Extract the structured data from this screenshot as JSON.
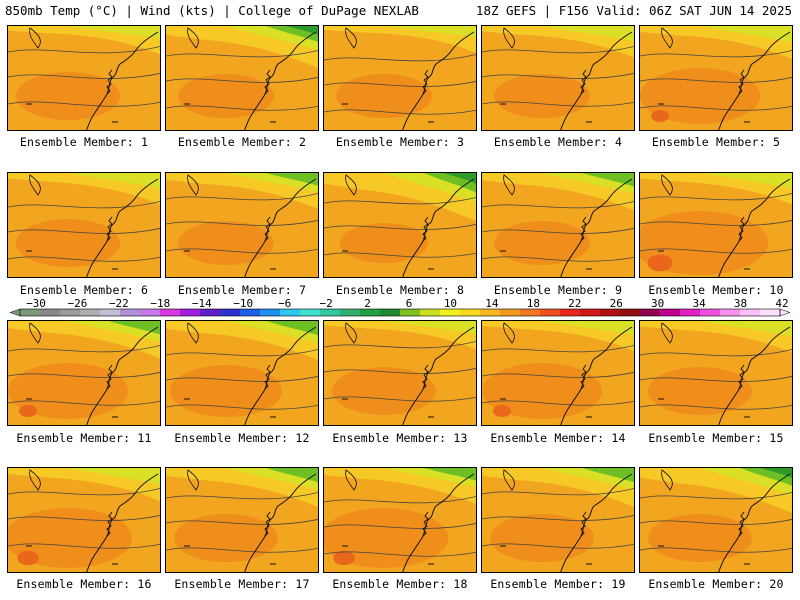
{
  "header": {
    "left": "850mb Temp (°C) | Wind (kts) | College of DuPage NEXLAB",
    "right": "18Z GEFS | F156 Valid: 06Z SAT JUN 14 2025"
  },
  "panels": [
    {
      "label": "Ensemble Member: 1",
      "cool_top": 0.15,
      "warm_blob": 0.3
    },
    {
      "label": "Ensemble Member: 2",
      "cool_top": 0.6,
      "warm_blob": 0.2
    },
    {
      "label": "Ensemble Member: 3",
      "cool_top": 0.1,
      "warm_blob": 0.2
    },
    {
      "label": "Ensemble Member: 4",
      "cool_top": 0.25,
      "warm_blob": 0.2
    },
    {
      "label": "Ensemble Member: 5",
      "cool_top": 0.3,
      "warm_blob": 0.5
    },
    {
      "label": "Ensemble Member: 6",
      "cool_top": 0.25,
      "warm_blob": 0.3
    },
    {
      "label": "Ensemble Member: 7",
      "cool_top": 0.4,
      "warm_blob": 0.2
    },
    {
      "label": "Ensemble Member: 8",
      "cool_top": 0.8,
      "warm_blob": 0.1
    },
    {
      "label": "Ensemble Member: 9",
      "cool_top": 0.45,
      "warm_blob": 0.2
    },
    {
      "label": "Ensemble Member: 10",
      "cool_top": 0.25,
      "warm_blob": 0.7
    },
    {
      "label": "Ensemble Member: 11",
      "cool_top": 0.45,
      "warm_blob": 0.5
    },
    {
      "label": "Ensemble Member: 12",
      "cool_top": 0.5,
      "warm_blob": 0.4
    },
    {
      "label": "Ensemble Member: 13",
      "cool_top": 0.15,
      "warm_blob": 0.3
    },
    {
      "label": "Ensemble Member: 14",
      "cool_top": 0.2,
      "warm_blob": 0.5
    },
    {
      "label": "Ensemble Member: 15",
      "cool_top": 0.25,
      "warm_blob": 0.3
    },
    {
      "label": "Ensemble Member: 16",
      "cool_top": 0.3,
      "warm_blob": 0.6
    },
    {
      "label": "Ensemble Member: 17",
      "cool_top": 0.5,
      "warm_blob": 0.3
    },
    {
      "label": "Ensemble Member: 18",
      "cool_top": 0.4,
      "warm_blob": 0.6
    },
    {
      "label": "Ensemble Member: 19",
      "cool_top": 0.5,
      "warm_blob": 0.3
    },
    {
      "label": "Ensemble Member: 20",
      "cool_top": 0.7,
      "warm_blob": 0.3
    }
  ],
  "colorbar": {
    "ticks": [
      "-30",
      "-26",
      "-22",
      "-18",
      "-14",
      "-10",
      "-6",
      "-2",
      "2",
      "6",
      "10",
      "14",
      "18",
      "22",
      "26",
      "30",
      "34",
      "38",
      "42"
    ],
    "colors": [
      "#7a9a7a",
      "#8a8a8a",
      "#9a9a9a",
      "#b0b0b0",
      "#c0c0d8",
      "#b090d8",
      "#c878e8",
      "#d838e0",
      "#a020e0",
      "#6020c8",
      "#3030d0",
      "#2060e8",
      "#2090f0",
      "#30c8f0",
      "#40e0d0",
      "#30c8a0",
      "#30b070",
      "#20a040",
      "#208830",
      "#80c020",
      "#c8e020",
      "#f0f020",
      "#f8d820",
      "#f8b820",
      "#f09820",
      "#f07820",
      "#f05020",
      "#e82820",
      "#d01818",
      "#b01010",
      "#901010",
      "#900050",
      "#c00090",
      "#e020c0",
      "#f050e0",
      "#f890f0",
      "#fcc0f8",
      "#fde0fb"
    ],
    "unit": "°C"
  },
  "colors": {
    "warm": "#f2a51f",
    "warmer": "#ee8a1a",
    "hot": "#e8621c",
    "mild": "#f7c926",
    "cool": "#d9e025",
    "green": "#6dbf24",
    "dark_green": "#2e9a2a",
    "contour": "#444444",
    "coast": "#111111"
  }
}
